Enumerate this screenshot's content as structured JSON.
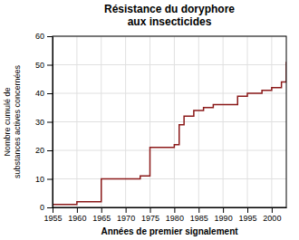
{
  "chart_data": {
    "type": "line",
    "title": "Résistance du doryphore\naux insecticides",
    "xlabel": "Années de premier signalement",
    "ylabel": "Nombre cumulé de\nsubstances actives concernées",
    "line_style": "step",
    "color": "#8b1a1a",
    "grid": true,
    "xlim": [
      1955,
      2003
    ],
    "ylim": [
      0,
      60
    ],
    "xticks": [
      1955,
      1960,
      1965,
      1970,
      1975,
      1980,
      1985,
      1990,
      1995,
      2000
    ],
    "yticks": [
      0,
      10,
      20,
      30,
      40,
      50,
      60
    ],
    "x": [
      1955,
      1957,
      1960,
      1961,
      1963,
      1964,
      1965,
      1965,
      1967,
      1970,
      1972,
      1973,
      1974,
      1975,
      1975,
      1976,
      1977,
      1978,
      1979,
      1980,
      1981,
      1982,
      1983,
      1984,
      1985,
      1986,
      1987,
      1988,
      1989,
      1990,
      1991,
      1993,
      1994,
      1995,
      1996,
      1997,
      1998,
      1999,
      2000,
      2001,
      2002,
      2003
    ],
    "values": [
      1,
      1,
      2,
      2,
      2,
      2,
      3,
      10,
      10,
      10,
      10,
      11,
      11,
      11,
      21,
      21,
      21,
      21,
      21,
      22,
      29,
      32,
      32,
      34,
      34,
      35,
      35,
      36,
      36,
      36,
      36,
      39,
      39,
      40,
      40,
      40,
      41,
      41,
      42,
      42,
      44,
      51
    ]
  }
}
